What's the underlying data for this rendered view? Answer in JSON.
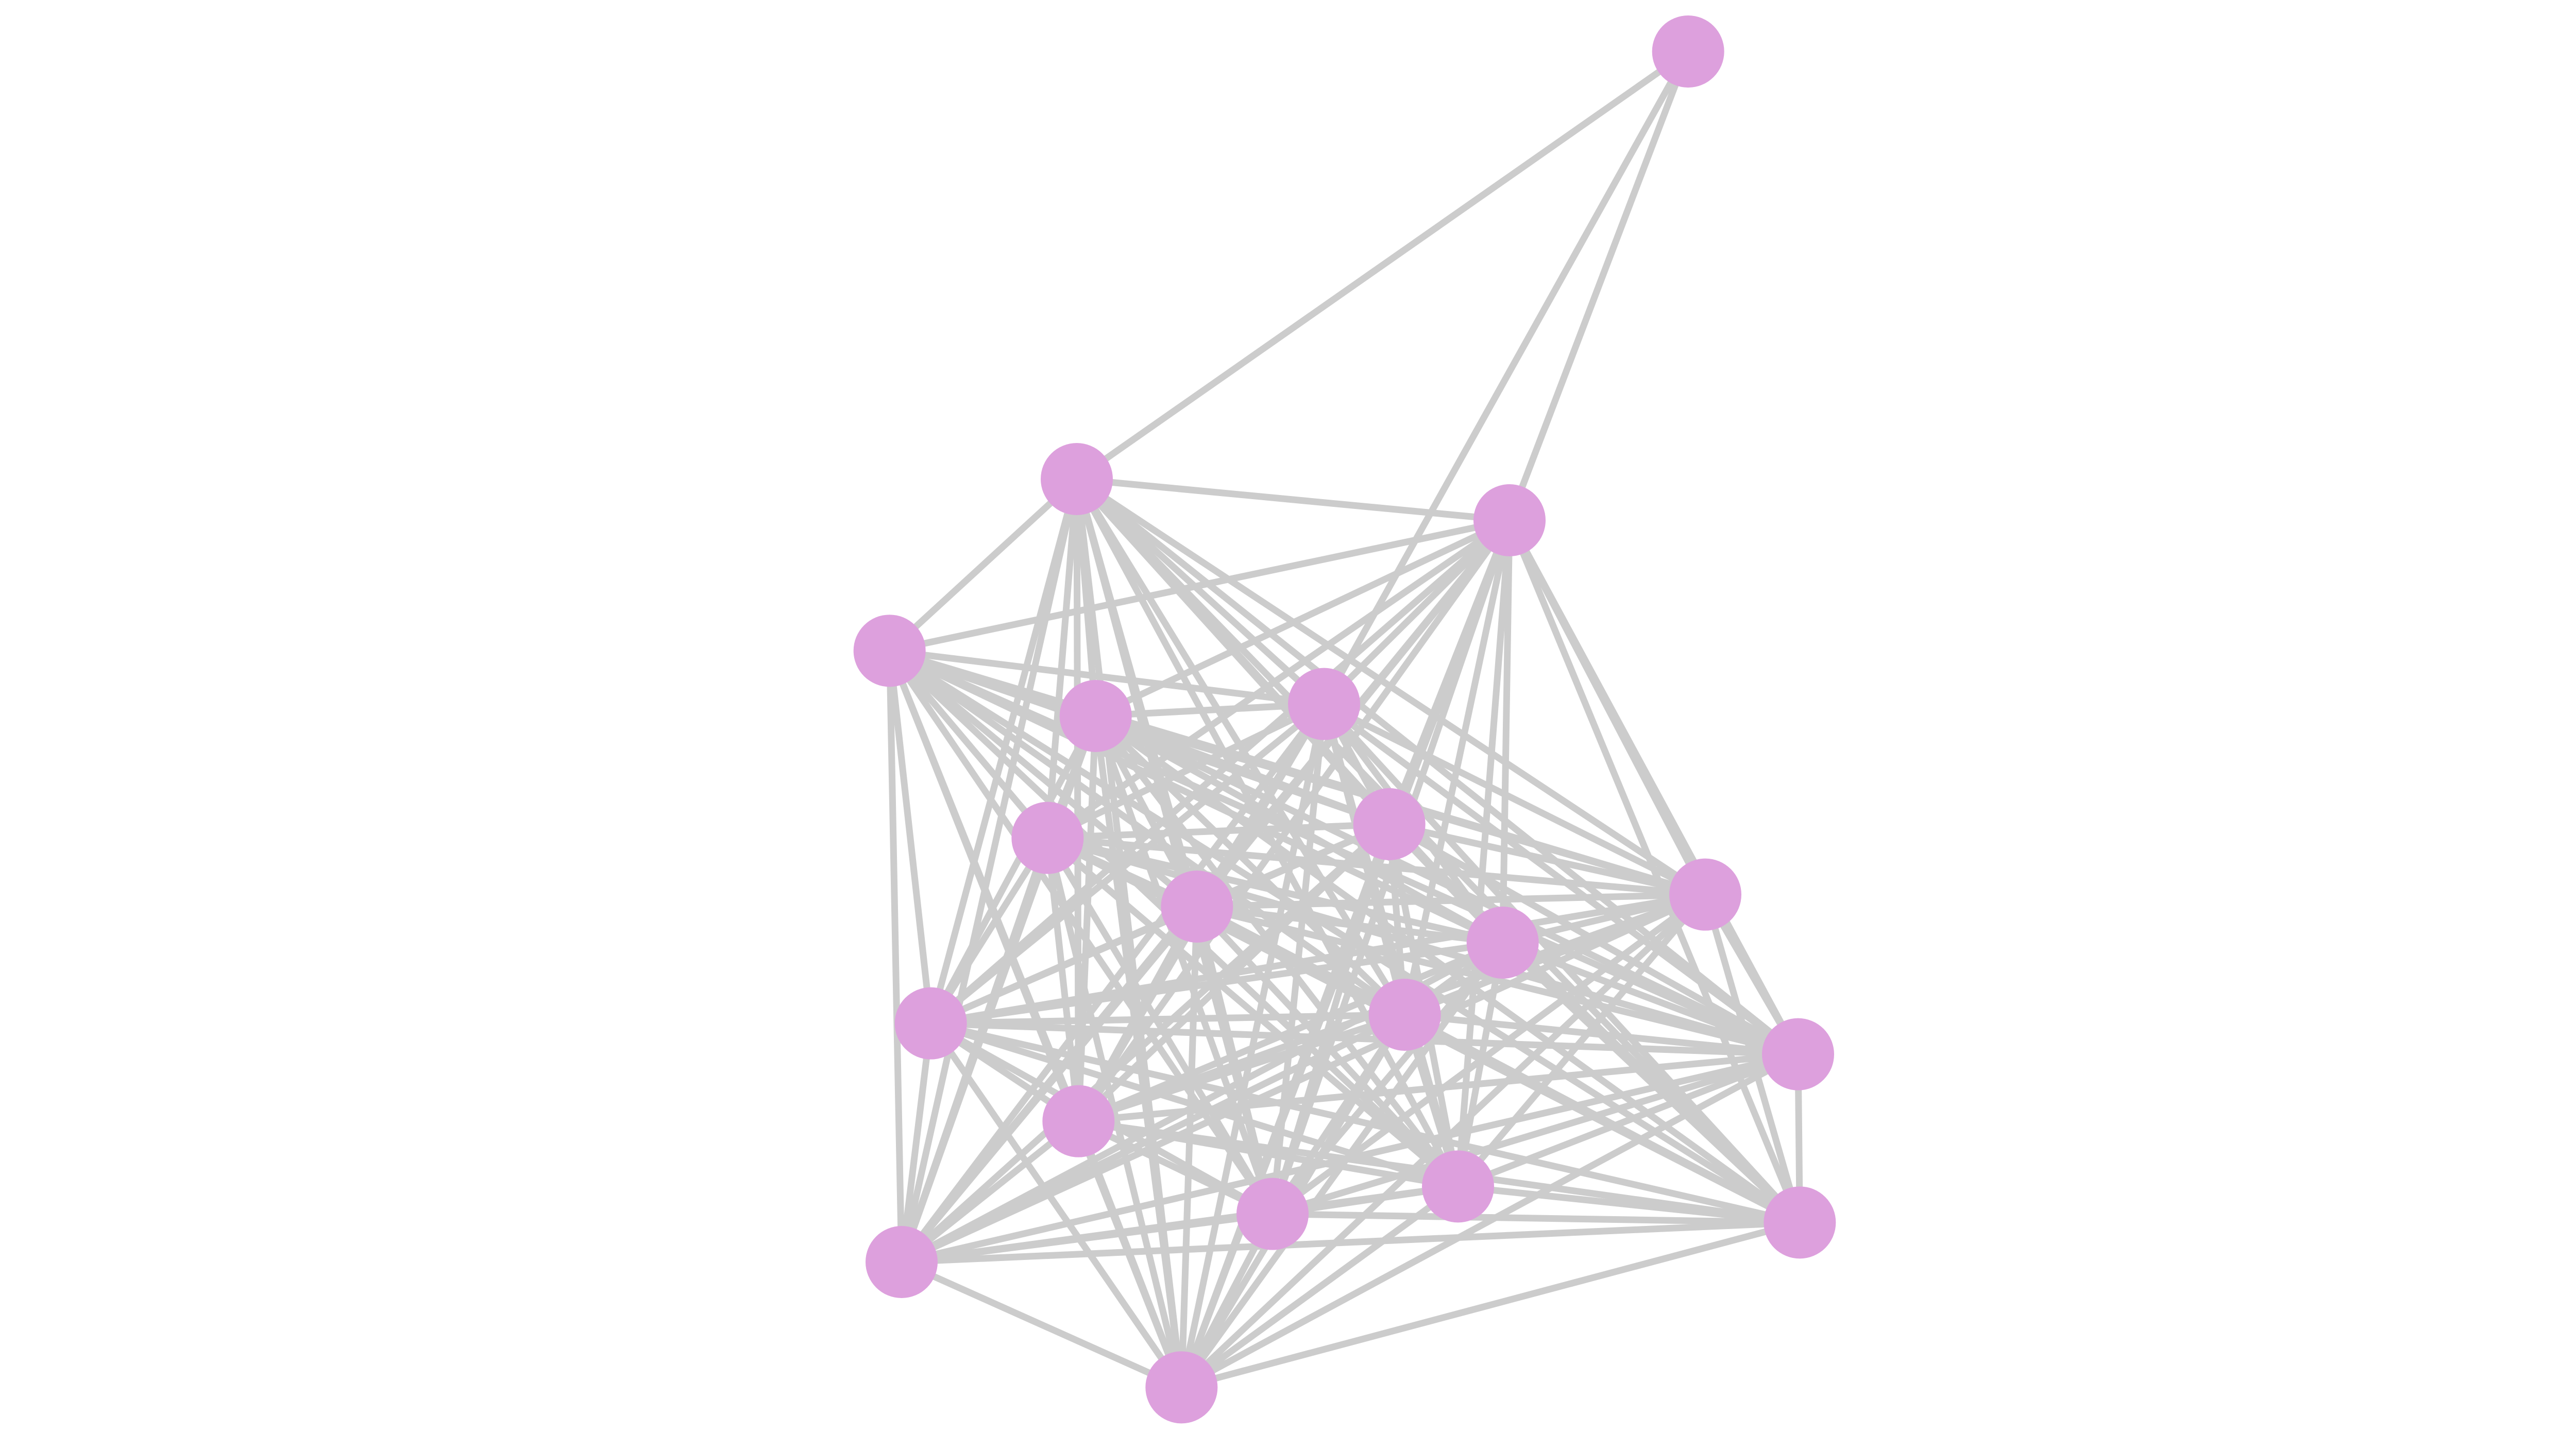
{
  "diagram": {
    "type": "network-graph",
    "node_color": "#dda0dd",
    "edge_color": "#cccccc",
    "background": "#ffffff",
    "nodes": [
      0,
      1,
      2,
      3,
      4,
      5,
      6,
      7,
      8,
      9,
      10,
      11,
      12,
      13,
      14,
      15,
      16,
      17,
      18,
      19
    ],
    "adjacency": {
      "0": [
        1,
        2,
        5
      ],
      "1": [
        2,
        3,
        4,
        5,
        6,
        7,
        8,
        9,
        10,
        11,
        12,
        13,
        14,
        15,
        16,
        17,
        18,
        19
      ],
      "2": [
        3,
        4,
        5,
        6,
        7,
        8,
        9,
        10,
        11,
        12,
        13,
        14,
        15,
        16,
        17,
        18,
        19
      ],
      "3": [
        4,
        5,
        6,
        7,
        8,
        9,
        10,
        11,
        12,
        13,
        14,
        15,
        16,
        17,
        18,
        19
      ],
      "4": [
        5,
        6,
        7,
        8,
        9,
        10,
        11,
        12,
        13,
        14,
        15,
        16,
        17,
        18,
        19
      ],
      "5": [
        6,
        7,
        8,
        9,
        10,
        11,
        12,
        13,
        14,
        15,
        16,
        17,
        18,
        19
      ],
      "6": [
        7,
        8,
        9,
        10,
        11,
        12,
        13,
        14,
        15,
        16,
        17,
        18,
        19
      ],
      "7": [
        8,
        9,
        10,
        11,
        12,
        13,
        14,
        15,
        16,
        17,
        18,
        19
      ],
      "8": [
        9,
        10,
        11,
        12,
        13,
        14,
        15,
        16,
        17,
        18,
        19
      ],
      "9": [
        10,
        11,
        12,
        13,
        14,
        15,
        16,
        17,
        18,
        19
      ],
      "10": [
        11,
        12,
        13,
        14,
        15,
        16,
        17,
        18,
        19
      ],
      "11": [
        12,
        13,
        14,
        15,
        16,
        17,
        18,
        19
      ],
      "12": [
        13,
        14,
        15,
        16,
        17,
        18,
        19
      ],
      "13": [
        14,
        15,
        16,
        17,
        18,
        19
      ],
      "14": [
        15,
        16,
        17,
        18,
        19
      ],
      "15": [
        16,
        17,
        18,
        19
      ],
      "16": [
        17,
        18,
        19
      ],
      "17": [
        18,
        19
      ],
      "18": [
        19
      ]
    }
  }
}
